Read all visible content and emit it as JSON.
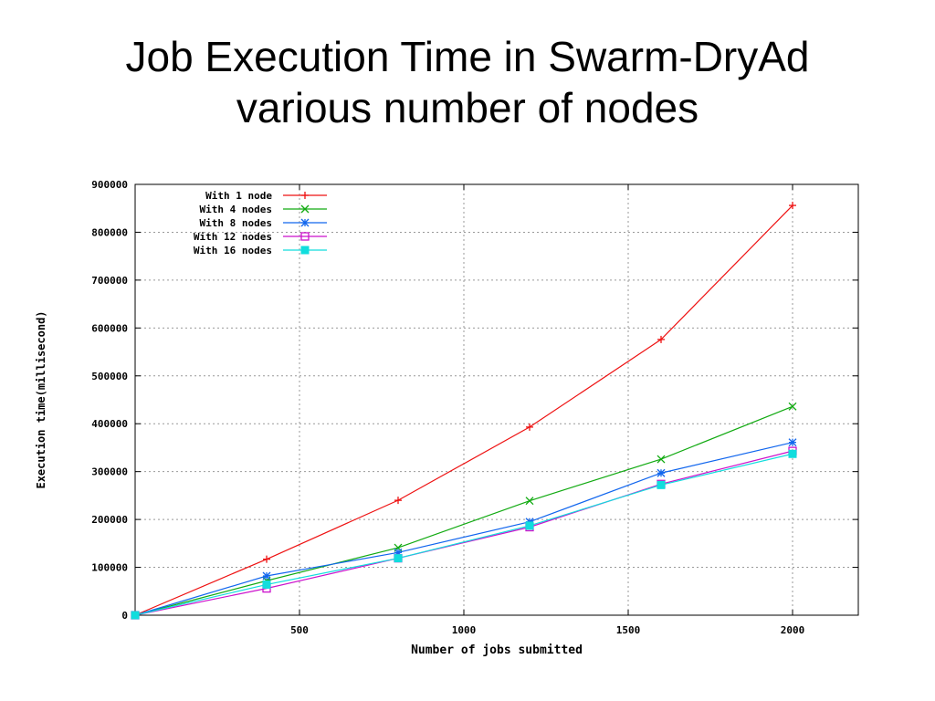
{
  "slide": {
    "title_line1": "Job Execution Time in Swarm-DryAd",
    "title_line2": "various number of nodes"
  },
  "chart_data": {
    "type": "line",
    "xlabel": "Number of jobs submitted",
    "ylabel": "Execution time(millisecond)",
    "xlim": [
      0,
      2200
    ],
    "ylim": [
      0,
      900000
    ],
    "xticks": [
      500,
      1000,
      1500,
      2000
    ],
    "yticks": [
      0,
      100000,
      200000,
      300000,
      400000,
      500000,
      600000,
      700000,
      800000,
      900000
    ],
    "grid": true,
    "legend_position": "top-left",
    "x": [
      0,
      400,
      800,
      1200,
      1600,
      2000
    ],
    "series": [
      {
        "name": "With 1 node",
        "color": "#ee1111",
        "marker": "plus",
        "values": [
          0,
          117000,
          240000,
          393000,
          576000,
          856000
        ]
      },
      {
        "name": "With 4 nodes",
        "color": "#11aa11",
        "marker": "cross",
        "values": [
          0,
          72000,
          141000,
          239000,
          326000,
          436000
        ]
      },
      {
        "name": "With 8 nodes",
        "color": "#1166ee",
        "marker": "star",
        "values": [
          0,
          82000,
          131000,
          195000,
          297000,
          361000
        ]
      },
      {
        "name": "With 12 nodes",
        "color": "#cc11cc",
        "marker": "open-square",
        "values": [
          0,
          56000,
          119000,
          184000,
          274000,
          343000
        ]
      },
      {
        "name": "With 16 nodes",
        "color": "#11dddd",
        "marker": "filled-square",
        "values": [
          0,
          64000,
          119000,
          187000,
          272000,
          337000
        ]
      }
    ]
  }
}
